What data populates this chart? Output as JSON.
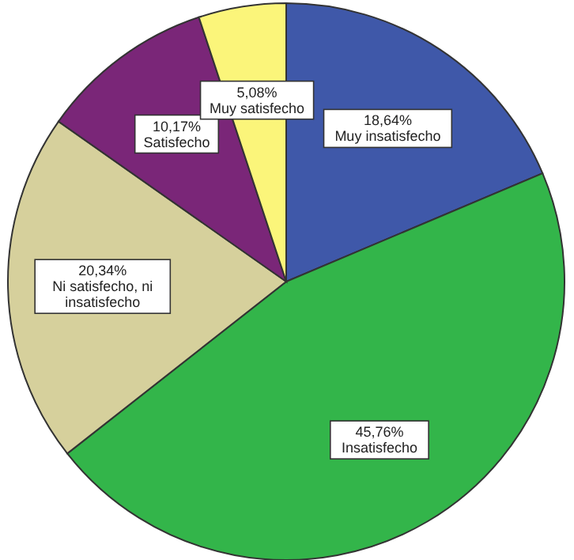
{
  "chart_data": {
    "type": "pie",
    "categories": [
      "Muy insatisfecho",
      "Insatisfecho",
      "Ni satisfecho, ni insatisfecho",
      "Satisfecho",
      "Muy satisfecho"
    ],
    "values": [
      18.64,
      45.76,
      20.34,
      10.17,
      5.08
    ],
    "value_labels": [
      "18,64%",
      "45,76%",
      "20,34%",
      "10,17%",
      "5,08%"
    ],
    "colors": [
      "#3f58a9",
      "#33b54a",
      "#d6d09c",
      "#7a2678",
      "#fbf57a"
    ]
  }
}
